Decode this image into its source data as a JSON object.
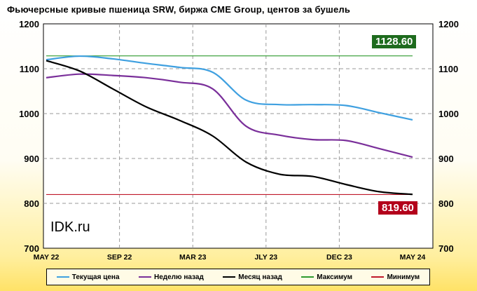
{
  "chart_data": {
    "type": "line",
    "title": "Фьючерсные кривые пшеница SRW, биржа CME Group, центов за бушель",
    "x_labels": [
      "MAY 22",
      "SEP 22",
      "MAR 23",
      "JLY 23",
      "DEC 23",
      "MAY 24"
    ],
    "yticks": [
      700,
      800,
      900,
      1000,
      1100,
      1200
    ],
    "ylim": [
      700,
      1200
    ],
    "grid": true,
    "legend_position": "bottom",
    "series": [
      {
        "name": "Текущая цена",
        "color": "#3fa0e0",
        "values": [
          1120,
          1128,
          1122,
          1112,
          1103,
          1092,
          1030,
          1020,
          1020,
          1018,
          1002,
          986
        ]
      },
      {
        "name": "Неделю назад",
        "color": "#7a2f9a",
        "values": [
          1080,
          1088,
          1085,
          1080,
          1070,
          1055,
          972,
          952,
          942,
          940,
          922,
          903
        ]
      },
      {
        "name": "Месяц  назад",
        "color": "#000000",
        "values": [
          1118,
          1095,
          1055,
          1015,
          985,
          950,
          892,
          865,
          860,
          842,
          826,
          820
        ]
      },
      {
        "name": "Максимум",
        "color": "#2e9a2e",
        "values": [
          1128.6,
          1128.6,
          1128.6,
          1128.6,
          1128.6,
          1128.6,
          1128.6,
          1128.6,
          1128.6,
          1128.6,
          1128.6,
          1128.6
        ]
      },
      {
        "name": "Минимум",
        "color": "#c0182a",
        "values": [
          819.6,
          819.6,
          819.6,
          819.6,
          819.6,
          819.6,
          819.6,
          819.6,
          819.6,
          819.6,
          819.6,
          819.6
        ]
      }
    ],
    "annotations": [
      {
        "text": "1128.60",
        "value": 1128.6,
        "color": "#1e6b1e"
      },
      {
        "text": "819.60",
        "value": 819.6,
        "color": "#b3001b"
      }
    ],
    "watermark": "IDK.ru"
  }
}
